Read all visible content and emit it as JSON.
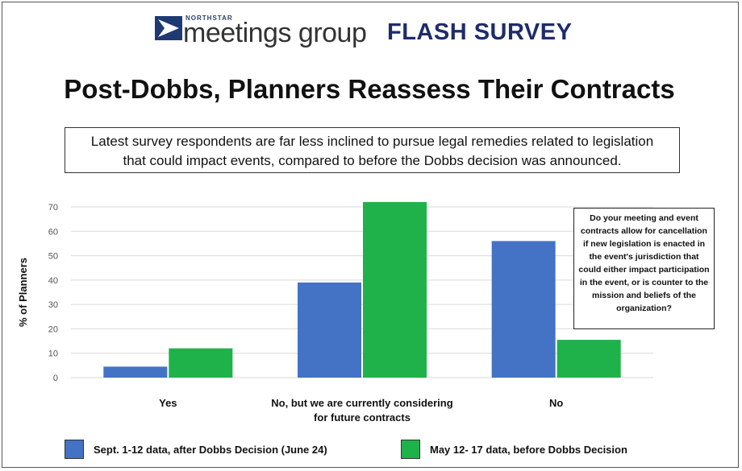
{
  "header": {
    "logo_small": "NORTHSTAR",
    "logo_text": "meetings group",
    "badge": "FLASH SURVEY",
    "title": "Post-Dobbs, Planners Reassess Their Contracts",
    "subtitle_line1": "Latest survey respondents are far less inclined to pursue legal remedies related to legislation",
    "subtitle_line2": "that could impact events, compared to before the Dobbs decision was announced."
  },
  "question": "Do your meeting and event contracts allow for cancellation if new legislation is enacted in the event's jurisdiction that could either impact participation in the event, or is counter to the mission and beliefs of the organization?",
  "colors": {
    "series1": "#4472c4",
    "series2": "#1fb24a",
    "grid": "#d9d9d9"
  },
  "chart_data": {
    "type": "bar",
    "title": "",
    "xlabel": "",
    "ylabel": "% of Planners",
    "ylim": [
      0,
      70
    ],
    "yticks": [
      0,
      10,
      20,
      30,
      40,
      50,
      60,
      70
    ],
    "categories": [
      [
        "Yes"
      ],
      [
        "No, but we are currently considering",
        "for future contracts"
      ],
      [
        "No"
      ]
    ],
    "series": [
      {
        "name": "Sept. 1-12 data, after Dobbs Decision (June 24)",
        "values": [
          4.5,
          39,
          56
        ]
      },
      {
        "name": "May 12- 17 data, before Dobbs Decision",
        "values": [
          12,
          72,
          15.5
        ]
      }
    ],
    "grid": true,
    "legend": "bottom"
  }
}
